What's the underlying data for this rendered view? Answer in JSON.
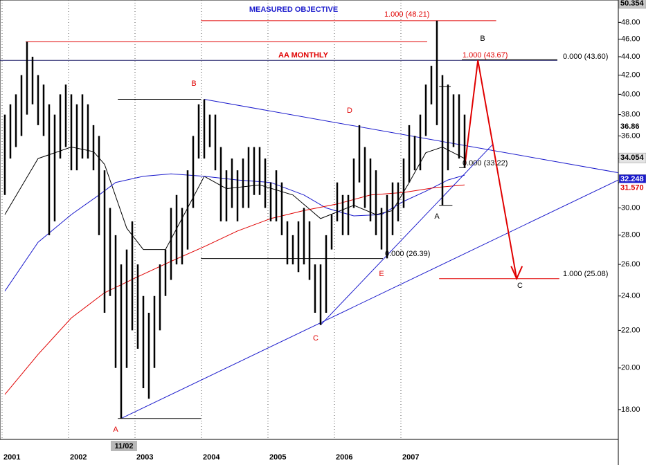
{
  "chart_data": {
    "type": "range_bar",
    "log_scale": true,
    "x_grid": true,
    "bar_color": "#000000",
    "categories": [
      "2001",
      null,
      null,
      null,
      null,
      null,
      null,
      null,
      null,
      null,
      null,
      null,
      "2002",
      null,
      null,
      null,
      null,
      null,
      null,
      null,
      null,
      null,
      null,
      null,
      "2003",
      null,
      null,
      null,
      null,
      null,
      null,
      null,
      null,
      null,
      null,
      null,
      "2004",
      null,
      null,
      null,
      null,
      null,
      null,
      null,
      null,
      null,
      null,
      null,
      "2005",
      null,
      null,
      null,
      null,
      null,
      null,
      null,
      null,
      null,
      null,
      null,
      "2006",
      null,
      null,
      null,
      null,
      null,
      null,
      null,
      null,
      null,
      null,
      null,
      "2007",
      null,
      null,
      null,
      null,
      null,
      null,
      null,
      null,
      null,
      null,
      null
    ],
    "high": [
      38,
      39,
      40,
      42,
      45.7,
      44,
      42,
      41,
      39,
      38,
      40,
      41,
      40,
      39,
      40,
      39,
      37,
      36,
      33,
      30,
      28,
      26,
      27,
      29,
      26,
      24,
      23,
      24,
      26,
      27,
      30,
      31,
      30,
      33,
      36,
      39,
      39.5,
      38,
      38,
      35,
      33,
      34,
      33,
      34,
      35,
      35,
      35,
      34,
      32,
      33,
      32,
      29,
      28,
      29,
      30,
      29,
      26,
      26,
      28,
      29.5,
      32,
      31,
      31,
      34,
      37,
      35,
      34,
      33,
      30,
      31,
      32,
      32,
      34,
      37,
      36,
      38,
      41,
      43,
      48.21,
      42,
      41,
      40,
      40,
      38
    ],
    "low": [
      31,
      34,
      35,
      36,
      38,
      39,
      37,
      36,
      28,
      29,
      34,
      35,
      33,
      33,
      34,
      34,
      33,
      28,
      23,
      24,
      20,
      17.6,
      20,
      22,
      21,
      19,
      18.5,
      20,
      22,
      24,
      25,
      26,
      26,
      27,
      30,
      34,
      34,
      35,
      33,
      29,
      29,
      30,
      29,
      30,
      30,
      31,
      31,
      30,
      29,
      29,
      28,
      26,
      26,
      25.5,
      26,
      25,
      23,
      22.3,
      23,
      27,
      29,
      28,
      28,
      30,
      32,
      30,
      29,
      28,
      27,
      26.4,
      28,
      29,
      30,
      32,
      33,
      33,
      36,
      39,
      37,
      30.2,
      33,
      35,
      34,
      33.2
    ],
    "overlays": [
      {
        "color": "#000000",
        "x": [
          0,
          6,
          12,
          16,
          18,
          22,
          25,
          29,
          33,
          36,
          40,
          46,
          52,
          57,
          63,
          67,
          70,
          73,
          76,
          79,
          83
        ],
        "values": [
          29.5,
          34,
          35,
          34.6,
          33.5,
          28.5,
          27,
          27,
          30,
          32.5,
          31.5,
          31.8,
          31,
          29.2,
          30.2,
          29.5,
          29.8,
          32,
          34.5,
          35,
          34
        ]
      },
      {
        "color": "#1a1acc",
        "x": [
          0,
          6,
          12,
          17,
          20,
          25,
          30,
          36,
          42,
          48,
          54,
          58,
          63,
          68,
          72,
          76,
          80,
          83
        ],
        "values": [
          24.3,
          27.5,
          29.5,
          31,
          32,
          32.5,
          32.7,
          32.5,
          32.2,
          32,
          31,
          30,
          29.4,
          29.5,
          30.5,
          31.3,
          32.2,
          32.6
        ]
      },
      {
        "color": "#e00000",
        "x": [
          0,
          6,
          12,
          18,
          24,
          30,
          36,
          42,
          48,
          54,
          60,
          66,
          72,
          78,
          83
        ],
        "values": [
          18.7,
          20.7,
          22.7,
          24.2,
          25.2,
          26.2,
          27.2,
          28.3,
          29.2,
          29.8,
          30.3,
          31,
          31.2,
          31.6,
          31.8
        ]
      }
    ],
    "lines": [
      {
        "color": "#1a1acc",
        "x": [
          36,
          110.75
        ],
        "y": [
          39.5,
          32.8
        ]
      },
      {
        "color": "#1a1acc",
        "x": [
          21,
          110.75
        ],
        "y": [
          17.6,
          32.2
        ]
      },
      {
        "color": "#1a1acc",
        "x": [
          57,
          88
        ],
        "y": [
          22.3,
          35.2
        ]
      },
      {
        "color": "#e00000",
        "x": [
          35.4,
          88.7
        ],
        "y": [
          48.21,
          48.21
        ]
      },
      {
        "color": "#e00000",
        "x": [
          3.75,
          76.25
        ],
        "y": [
          45.7,
          45.7
        ]
      },
      {
        "color": "#1a1a66",
        "x": [
          -0.875,
          99.75
        ],
        "y": [
          43.6,
          43.6
        ]
      },
      {
        "color": "#000000",
        "x": [
          82.5,
          99.75
        ],
        "y": [
          43.67,
          43.67
        ]
      },
      {
        "color": "#000000",
        "x": [
          20.4,
          35.4
        ],
        "y": [
          39.5,
          39.5
        ]
      },
      {
        "color": "#000000",
        "x": [
          35.4,
          68.25
        ],
        "y": [
          26.39,
          26.39
        ]
      },
      {
        "color": "#000000",
        "x": [
          20.4,
          35.4
        ],
        "y": [
          17.6,
          17.6
        ]
      },
      {
        "color": "#e00000",
        "x": [
          78.4,
          100.1
        ],
        "y": [
          25.08,
          25.08
        ]
      },
      {
        "color": "#000000",
        "x": [
          82,
          83.2
        ],
        "y": [
          33.22,
          33.22
        ]
      },
      {
        "color": "#000000",
        "x": [
          78.4,
          80.8
        ],
        "y": [
          30.2,
          30.2
        ]
      },
      {
        "color": "#000000",
        "x": [
          78.4,
          80.5
        ],
        "y": [
          40.8,
          40.8
        ]
      },
      {
        "color": "#e00000",
        "x": [
          83,
          85.4,
          92.4
        ],
        "y": [
          33.22,
          43.6,
          25.08
        ],
        "arrow": true
      }
    ],
    "annotations": [
      "MEASURED OBJECTIVE",
      "AA MONTHLY",
      "1.000 (48.21)",
      "1.000 (43.67)",
      "0.000 (43.60)",
      "0.000 (33.22)",
      "0.000 (26.39)",
      "1.000 (25.08)",
      "B",
      "D",
      "E",
      "C",
      "A",
      "B",
      "A",
      "C"
    ],
    "cursor_label": "11/02",
    "xlim": [
      -0.875,
      110.75
    ],
    "ylim": [
      16.69,
      50.8
    ],
    "yticks": [
      {
        "value": 18,
        "label": "18.00"
      },
      {
        "value": 20,
        "label": "20.00"
      },
      {
        "value": 22,
        "label": "22.00"
      },
      {
        "value": 24,
        "label": "24.00"
      },
      {
        "value": 26,
        "label": "26.00"
      },
      {
        "value": 28,
        "label": "28.00"
      },
      {
        "value": 30,
        "label": "30.00"
      },
      {
        "value": 32,
        "label": "32.00"
      },
      {
        "value": 34,
        "label": "34.00"
      },
      {
        "value": 36,
        "label": "36.00"
      },
      {
        "value": 38,
        "label": "38.00"
      },
      {
        "value": 40,
        "label": "40.00"
      },
      {
        "value": 42,
        "label": "42.00"
      },
      {
        "value": 44,
        "label": "44.00"
      },
      {
        "value": 46,
        "label": "46.00"
      },
      {
        "value": 48,
        "label": "48.00"
      }
    ],
    "price_markers": [
      {
        "value": 50.354,
        "label": "50.354",
        "bg": "#c8c8c8",
        "fg": "#000000"
      },
      {
        "value": 36.86,
        "label": "36.86",
        "bg": "#ffffff",
        "fg": "#000000"
      },
      {
        "value": 34.054,
        "label": "34.054",
        "bg": "#e4e4e4",
        "fg": "#000000"
      },
      {
        "value": 32.248,
        "label": "32.248",
        "bg": "#1a1acc",
        "fg": "#ffffff"
      },
      {
        "value": 31.57,
        "label": "31.570",
        "bg": "#ffffff",
        "fg": "#e00000"
      }
    ]
  }
}
